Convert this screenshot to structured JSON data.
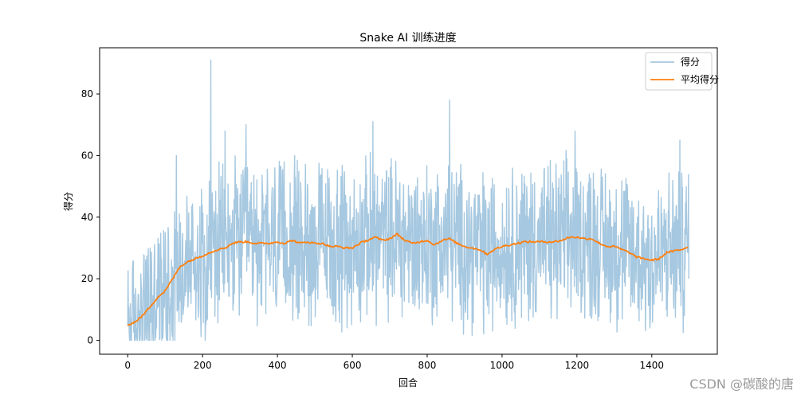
{
  "chart_data": {
    "type": "line",
    "title": "Snake AI 训练进度",
    "xlabel": "回合",
    "ylabel": "得分",
    "xlim": [
      -75,
      1575
    ],
    "ylim": [
      -4.5,
      95
    ],
    "xticks": [
      0,
      200,
      400,
      600,
      800,
      1000,
      1200,
      1400
    ],
    "yticks": [
      0,
      20,
      40,
      60,
      80
    ],
    "grid": false,
    "legend_position": "top-right",
    "series": [
      {
        "name": "得分",
        "color": "#a6c8e0",
        "description_points": "per-episode noisy score",
        "x_start": 0,
        "x_end": 1499,
        "n": 1500,
        "keypoints": [
          {
            "x": 0,
            "y": 5
          },
          {
            "x": 20,
            "y": 0
          },
          {
            "x": 60,
            "y": 30
          },
          {
            "x": 100,
            "y": 35
          },
          {
            "x": 130,
            "y": 60
          },
          {
            "x": 222,
            "y": 91
          },
          {
            "x": 260,
            "y": 68
          },
          {
            "x": 316,
            "y": 70
          },
          {
            "x": 655,
            "y": 71
          },
          {
            "x": 860,
            "y": 78
          },
          {
            "x": 1195,
            "y": 68
          },
          {
            "x": 1475,
            "y": 65
          },
          {
            "x": 1499,
            "y": 20
          }
        ]
      },
      {
        "name": "平均得分",
        "color": "#ff7f0e",
        "x": [
          0,
          20,
          40,
          60,
          80,
          100,
          120,
          140,
          160,
          180,
          200,
          220,
          240,
          260,
          280,
          300,
          320,
          340,
          360,
          380,
          400,
          420,
          440,
          460,
          480,
          500,
          520,
          540,
          560,
          580,
          600,
          620,
          640,
          660,
          680,
          700,
          720,
          740,
          760,
          780,
          800,
          820,
          840,
          860,
          880,
          900,
          920,
          940,
          960,
          980,
          1000,
          1020,
          1040,
          1060,
          1080,
          1100,
          1120,
          1140,
          1160,
          1180,
          1200,
          1220,
          1240,
          1260,
          1280,
          1300,
          1320,
          1340,
          1360,
          1380,
          1400,
          1420,
          1440,
          1460,
          1480,
          1499
        ],
        "y": [
          5,
          6,
          8,
          11,
          14,
          16,
          20,
          24,
          25.5,
          26.5,
          27.5,
          28.5,
          29.5,
          30,
          31.5,
          32,
          32,
          31.5,
          31.5,
          31.5,
          32,
          31.5,
          32.5,
          31.5,
          32,
          31.5,
          31.5,
          30.5,
          30.5,
          30,
          30,
          31.5,
          32.5,
          33.5,
          32.5,
          33,
          34.5,
          32.5,
          31.5,
          32,
          32.5,
          31,
          32.5,
          33,
          31.5,
          30.5,
          30,
          29.5,
          28,
          29.5,
          30.5,
          31,
          31.5,
          32,
          32,
          32,
          32,
          32,
          32.5,
          33.5,
          33.5,
          33,
          33,
          31.5,
          30.5,
          30.5,
          29.5,
          28.5,
          27,
          26.5,
          26,
          26.5,
          28.5,
          29,
          29.5,
          30.5
        ]
      }
    ]
  },
  "watermark": "CSDN @碳酸的唐"
}
